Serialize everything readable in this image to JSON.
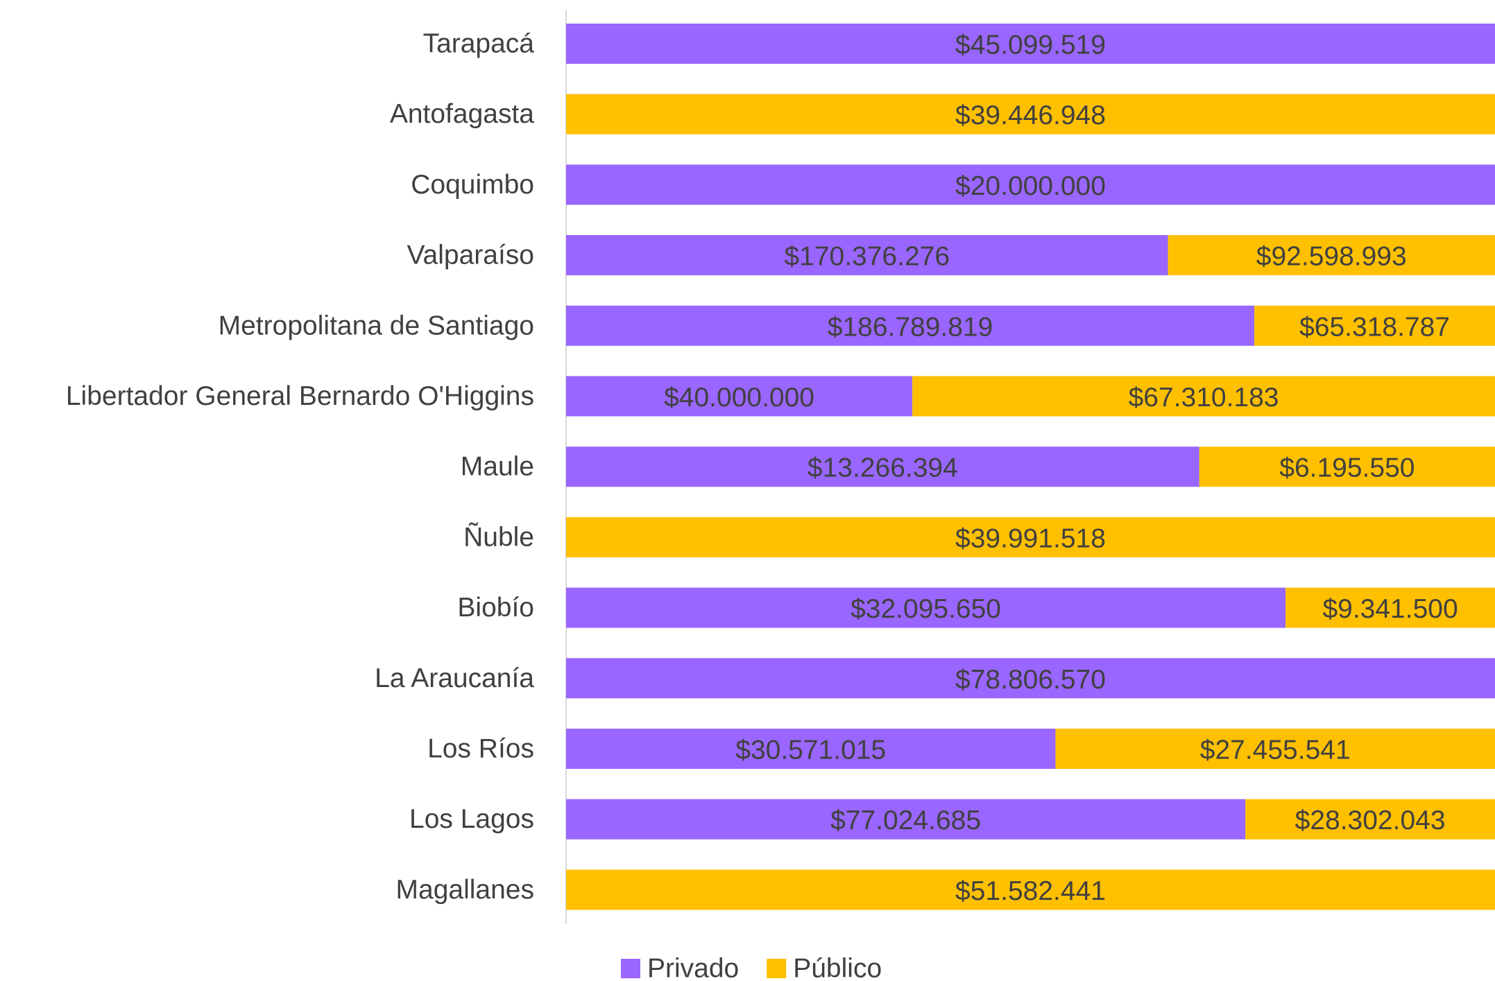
{
  "chart_data": {
    "type": "bar_stacked_100",
    "categories": [
      "Tarapacá",
      "Antofagasta",
      "Coquimbo",
      "Valparaíso",
      "Metropolitana de Santiago",
      "Libertador General Bernardo O'Higgins",
      "Maule",
      "Ñuble",
      "Biobío",
      "La Araucanía",
      "Los Ríos",
      "Los Lagos",
      "Magallanes"
    ],
    "series": [
      {
        "name": "Privado",
        "color": "#9966ff",
        "values": [
          45099519,
          null,
          20000000,
          170376276,
          186789819,
          40000000,
          13266394,
          null,
          32095650,
          78806570,
          30571015,
          77024685,
          null
        ],
        "value_labels": [
          "$45.099.519",
          null,
          "$20.000.000",
          "$170.376.276",
          "$186.789.819",
          "$40.000.000",
          "$13.266.394",
          null,
          "$32.095.650",
          "$78.806.570",
          "$30.571.015",
          "$77.024.685",
          null
        ]
      },
      {
        "name": "Público",
        "color": "#ffc000",
        "values": [
          null,
          39446948,
          null,
          92598993,
          65318787,
          67310183,
          6195550,
          39991518,
          9341500,
          null,
          27455541,
          28302043,
          51582441
        ],
        "value_labels": [
          null,
          "$39.446.948",
          null,
          "$92.598.993",
          "$65.318.787",
          "$67.310.183",
          "$6.195.550",
          "$39.991.518",
          "$9.341.500",
          null,
          "$27.455.541",
          "$28.302.043",
          "$51.582.441"
        ]
      }
    ],
    "legend": "bottom"
  }
}
